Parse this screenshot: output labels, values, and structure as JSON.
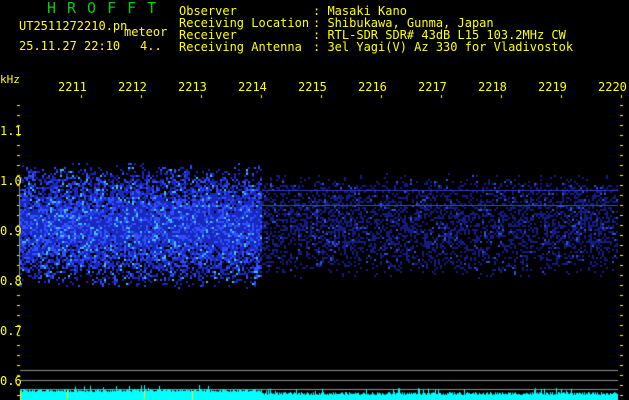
{
  "header": {
    "title": "HROFFT",
    "filename": "UT2511272210.pn",
    "mode": "meteor",
    "datetime": "25.11.27 22:10",
    "count": "4..",
    "fields": [
      {
        "label": "Observer",
        "value": "Masaki Kano"
      },
      {
        "label": "Receiving Location",
        "value": "Shibukawa, Gunma, Japan"
      },
      {
        "label": "Receiver",
        "value": "RTL-SDR SDR# 43dB L15 103.2MHz CW"
      },
      {
        "label": "Receiving Antenna",
        "value": "3el Yagi(V) Az 330 for Vladivostok"
      }
    ]
  },
  "plot": {
    "y_unit": "kHz",
    "y_ticks": [
      "1.1",
      "1.0",
      "0.9",
      "0.8",
      "0.7",
      "0.6"
    ],
    "time_labels": [
      "2211",
      "2212",
      "2213",
      "2214",
      "2215",
      "2216",
      "2217",
      "2218",
      "2219",
      "2220"
    ],
    "colors": {
      "axis": "#ffff00",
      "signal": "#2040ff",
      "level": "#00ffff",
      "title": "#00d000"
    }
  }
}
